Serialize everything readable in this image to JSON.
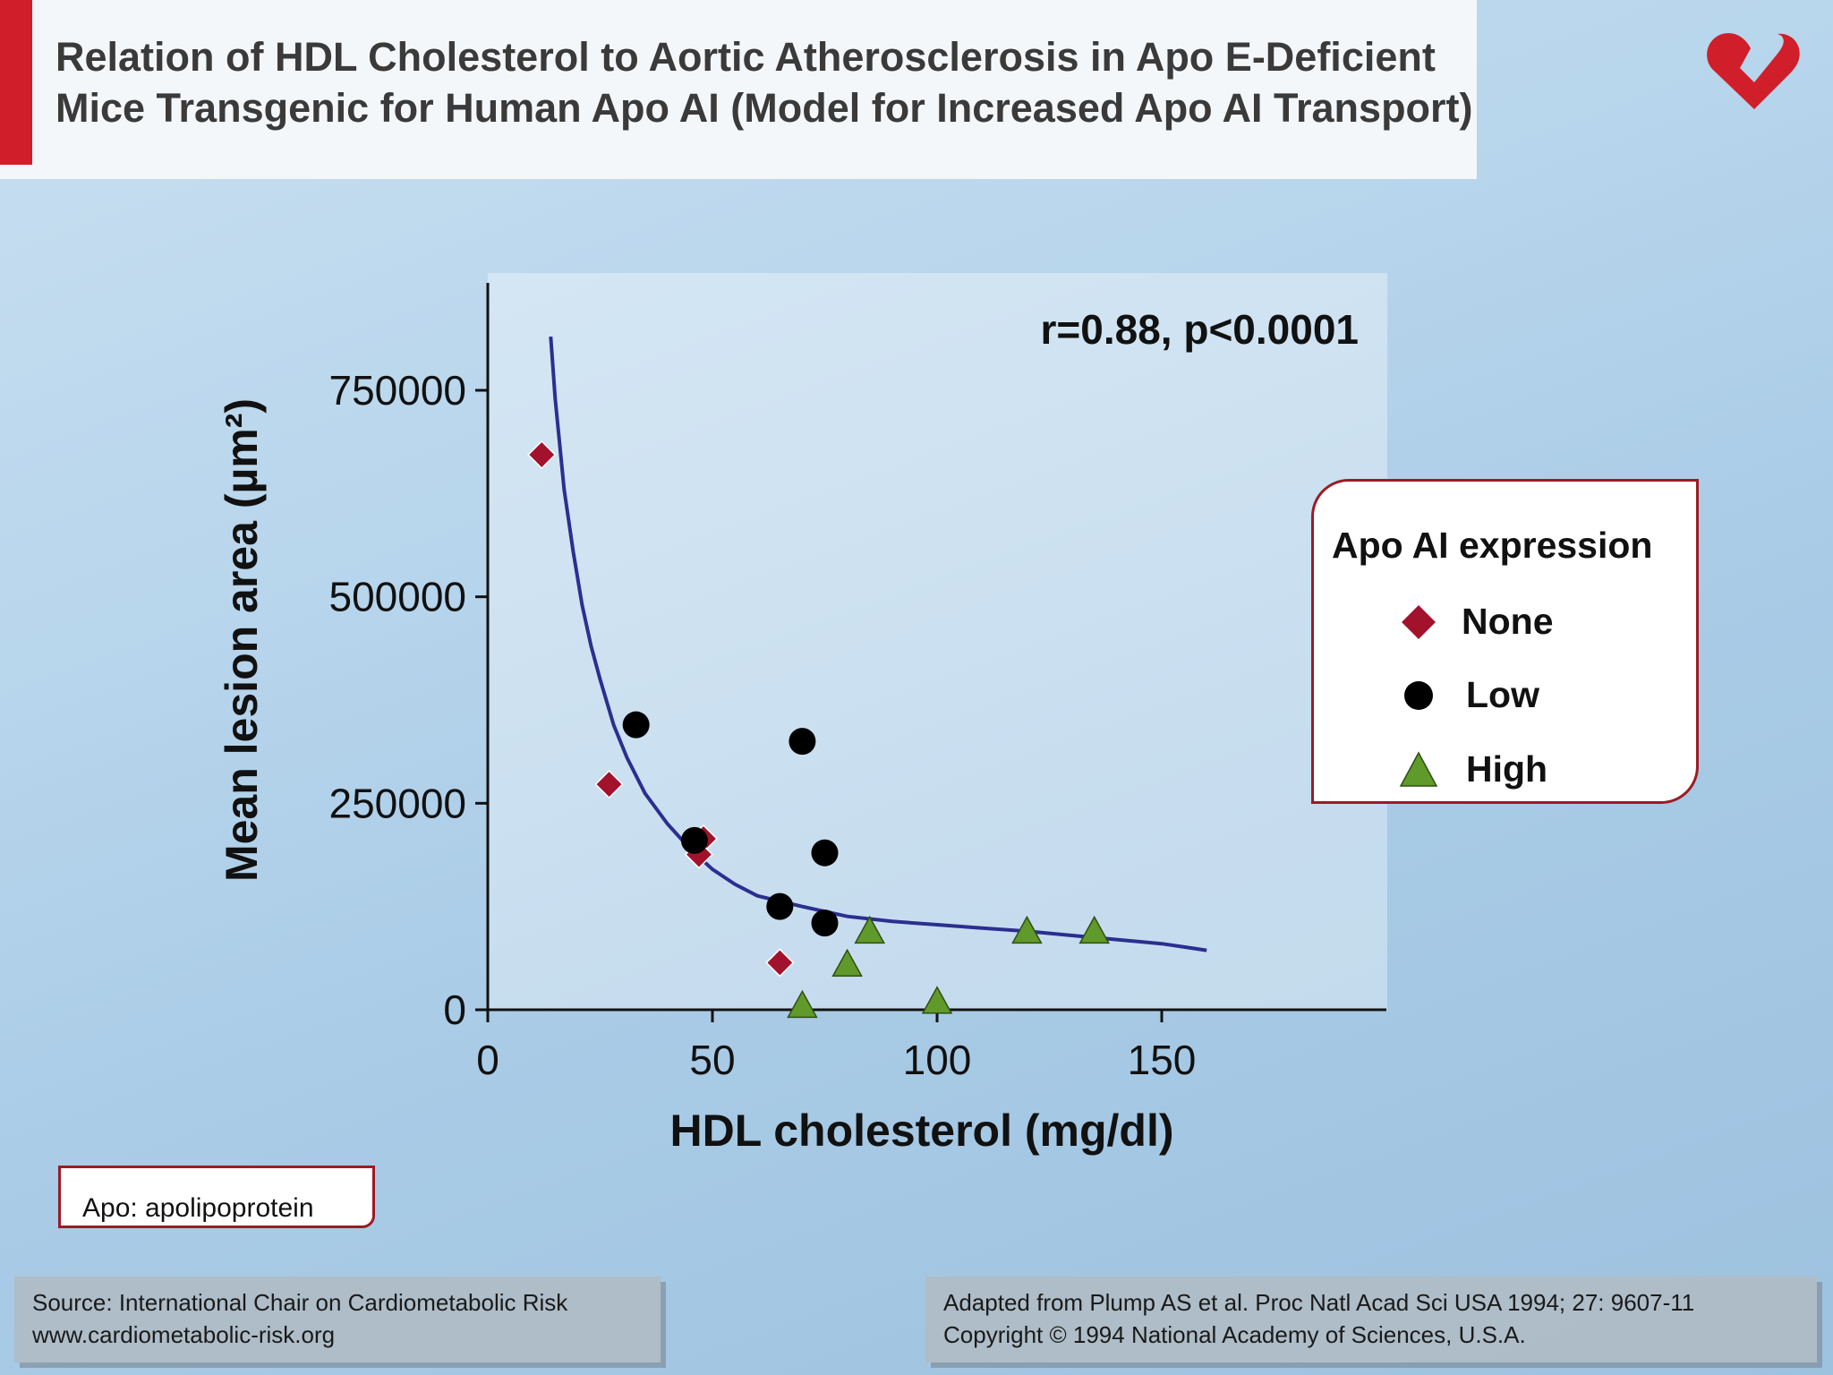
{
  "header": {
    "title_line1": "Relation of HDL Cholesterol to Aortic Atherosclerosis in Apo E-Deficient",
    "title_line2": "Mice Transgenic for Human Apo AI (Model for Increased Apo AI Transport)"
  },
  "colors": {
    "accent_red": "#d01e2a",
    "none_marker": "#a3122c",
    "low_marker": "#000000",
    "high_marker": "#5f9a2a",
    "curve": "#2b2f8f"
  },
  "chart_data": {
    "type": "scatter",
    "xlabel": "HDL cholesterol (mg/dl)",
    "ylabel": "Mean lesion area (µm²)",
    "annotation": "r=0.88, p<0.0001",
    "xlim": [
      0,
      200
    ],
    "ylim": [
      0,
      880000
    ],
    "x_ticks": [
      0,
      50,
      100,
      150
    ],
    "y_ticks": [
      0,
      250000,
      500000,
      750000
    ],
    "x_tick_labels": [
      "0",
      "50",
      "100",
      "150"
    ],
    "y_tick_labels": [
      "0",
      "250000",
      "500000",
      "750000"
    ],
    "legend_title": "Apo AI expression",
    "legend_position": "right",
    "series": [
      {
        "name": "None",
        "marker": "diamond",
        "points": [
          [
            12,
            672000
          ],
          [
            27,
            273000
          ],
          [
            48,
            207000
          ],
          [
            47,
            188000
          ],
          [
            65,
            57000
          ]
        ]
      },
      {
        "name": "Low",
        "marker": "circle",
        "points": [
          [
            33,
            345000
          ],
          [
            46,
            205000
          ],
          [
            70,
            325000
          ],
          [
            75,
            190000
          ],
          [
            65,
            125000
          ],
          [
            75,
            105000
          ]
        ]
      },
      {
        "name": "High",
        "marker": "triangle",
        "points": [
          [
            70,
            5000
          ],
          [
            80,
            55000
          ],
          [
            85,
            95000
          ],
          [
            100,
            10000
          ],
          [
            120,
            95000
          ],
          [
            135,
            95000
          ]
        ]
      }
    ],
    "fit_curve": {
      "x": [
        14,
        15,
        17,
        19,
        21,
        23,
        25,
        28,
        31,
        35,
        40,
        45,
        50,
        55,
        60,
        70,
        80,
        90,
        100,
        110,
        120,
        130,
        140,
        150,
        155,
        160
      ],
      "y": [
        815000,
        740000,
        630000,
        555000,
        490000,
        440000,
        400000,
        345000,
        305000,
        262000,
        225000,
        195000,
        170000,
        152000,
        138000,
        125000,
        113000,
        107000,
        103000,
        99000,
        95000,
        90000,
        85000,
        80000,
        76000,
        72000
      ]
    }
  },
  "footnote": "Apo: apolipoprotein",
  "source": {
    "line1": "Source: International Chair on Cardiometabolic Risk",
    "line2": "www.cardiometabolic-risk.org"
  },
  "reference": {
    "line1": "Adapted from Plump AS et al. Proc Natl Acad Sci USA 1994; 27: 9607-11",
    "line2": "Copyright © 1994 National Academy of Sciences, U.S.A."
  }
}
